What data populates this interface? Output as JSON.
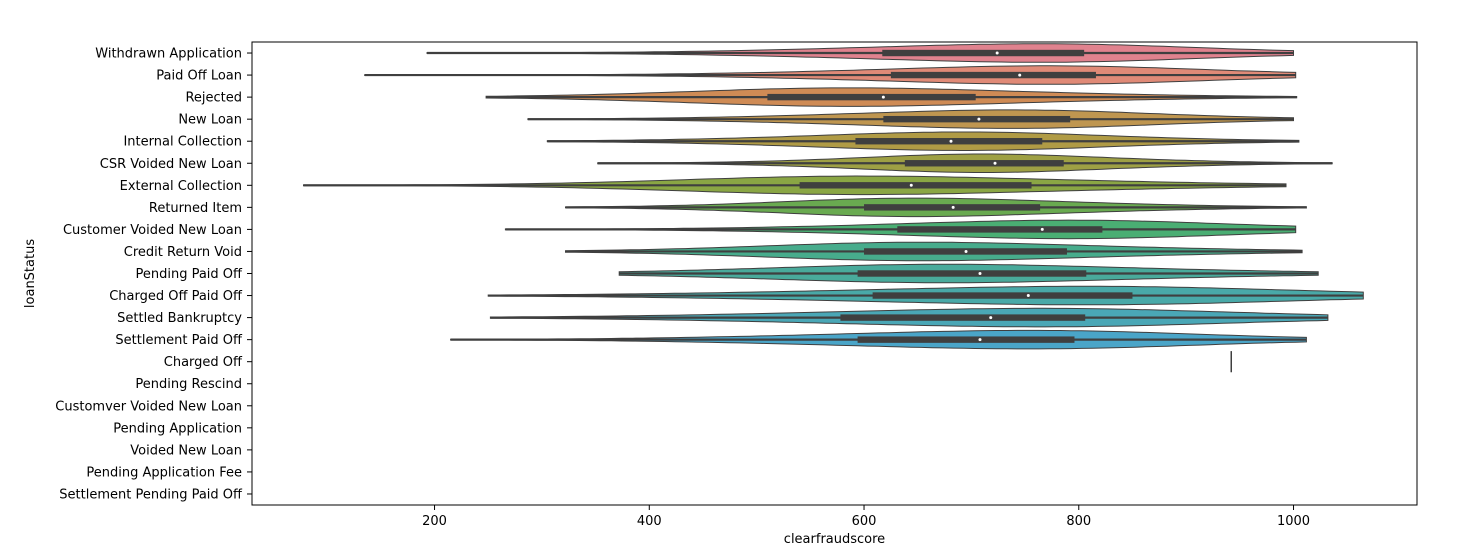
{
  "chart_data": {
    "type": "violin",
    "title": "",
    "xlabel": "clearfraudscore",
    "ylabel": "loanStatus",
    "xlim": [
      30,
      1115
    ],
    "xticks": [
      200,
      400,
      600,
      800,
      1000
    ],
    "grid": false,
    "legend": "none",
    "categories": [
      "Withdrawn Application",
      "Paid Off Loan",
      "Rejected",
      "New Loan",
      "Internal Collection",
      "CSR Voided New Loan",
      "External Collection",
      "Returned Item",
      "Customer Voided New Loan",
      "Credit Return Void",
      "Pending Paid Off",
      "Charged Off Paid Off",
      "Settled Bankruptcy",
      "Settlement Paid Off",
      "Charged Off",
      "Pending Rescind",
      "Customver Voided New Loan",
      "Pending Application",
      "Voided New Loan",
      "Pending Application Fee",
      "Settlement Pending Paid Off"
    ],
    "series": [
      {
        "min": 193,
        "q1": 617,
        "median": 724,
        "q3": 805,
        "max": 1000,
        "peak": 795,
        "color": "#e0828e"
      },
      {
        "min": 135,
        "q1": 625,
        "median": 745,
        "q3": 816,
        "max": 1002,
        "peak": 790,
        "color": "#e08a77"
      },
      {
        "min": 248,
        "q1": 510,
        "median": 618,
        "q3": 704,
        "max": 1003,
        "peak": 560,
        "color": "#cf8b55"
      },
      {
        "min": 287,
        "q1": 618,
        "median": 707,
        "q3": 792,
        "max": 1000,
        "peak": 760,
        "color": "#bf9650"
      },
      {
        "min": 305,
        "q1": 592,
        "median": 681,
        "q3": 766,
        "max": 1005,
        "peak": 700,
        "color": "#b09b45"
      },
      {
        "min": 352,
        "q1": 638,
        "median": 722,
        "q3": 786,
        "max": 1036,
        "peak": 700,
        "color": "#9ea044"
      },
      {
        "min": 78,
        "q1": 540,
        "median": 644,
        "q3": 756,
        "max": 993,
        "peak": 560,
        "color": "#8aa644"
      },
      {
        "min": 322,
        "q1": 600,
        "median": 683,
        "q3": 764,
        "max": 1012,
        "peak": 620,
        "color": "#69aa50"
      },
      {
        "min": 266,
        "q1": 631,
        "median": 766,
        "q3": 822,
        "max": 1002,
        "peak": 810,
        "color": "#4aae73"
      },
      {
        "min": 322,
        "q1": 600,
        "median": 695,
        "q3": 789,
        "max": 1008,
        "peak": 620,
        "color": "#47ac8c"
      },
      {
        "min": 372,
        "q1": 594,
        "median": 708,
        "q3": 807,
        "max": 1023,
        "peak": 650,
        "color": "#49aa9b"
      },
      {
        "min": 250,
        "q1": 608,
        "median": 753,
        "q3": 850,
        "max": 1065,
        "peak": 850,
        "color": "#49a9a8"
      },
      {
        "min": 252,
        "q1": 578,
        "median": 718,
        "q3": 806,
        "max": 1032,
        "peak": 800,
        "color": "#4aa7b6"
      },
      {
        "min": 215,
        "q1": 594,
        "median": 708,
        "q3": 796,
        "max": 1012,
        "peak": 790,
        "color": "#4aa5c8"
      },
      {
        "single": 942
      },
      null,
      null,
      null,
      null,
      null,
      null
    ]
  }
}
